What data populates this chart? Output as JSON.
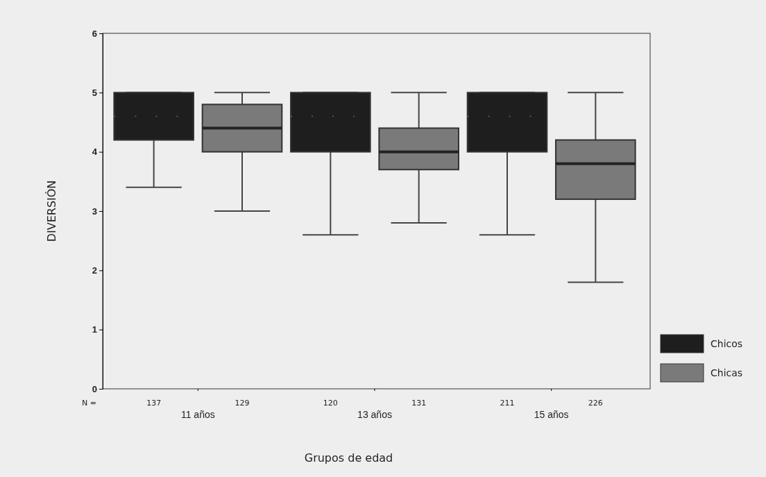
{
  "chart_data": {
    "type": "box",
    "xlabel": "Grupos de edad",
    "ylabel": "DIVERSIÓN",
    "categories": [
      "11 años",
      "13 años",
      "15 años"
    ],
    "ylim": [
      0,
      6
    ],
    "yticks": [
      0,
      1,
      2,
      3,
      4,
      5,
      6
    ],
    "legend": "right",
    "grid": false,
    "series": [
      {
        "name": "Chicos",
        "color": "#1e1e1e",
        "boxes": [
          {
            "low": 3.4,
            "q1": 4.2,
            "median": 4.6,
            "q3": 5,
            "high": 5
          },
          {
            "low": 2.6,
            "q1": 4,
            "median": 4.6,
            "q3": 5,
            "high": 5
          },
          {
            "low": 2.6,
            "q1": 4,
            "median": 4.6,
            "q3": 5,
            "high": 5
          }
        ]
      },
      {
        "name": "Chicas",
        "color": "#7a7a7a",
        "boxes": [
          {
            "low": 3,
            "q1": 4,
            "median": 4.4,
            "q3": 4.8,
            "high": 5
          },
          {
            "low": 2.8,
            "q1": 3.7,
            "median": 4,
            "q3": 4.4,
            "high": 5
          },
          {
            "low": 1.8,
            "q1": 3.2,
            "median": 3.8,
            "q3": 4.2,
            "high": 5
          }
        ]
      }
    ],
    "annotations": [
      "N =",
      "137",
      "129",
      "120",
      "131",
      "211",
      "226"
    ]
  }
}
